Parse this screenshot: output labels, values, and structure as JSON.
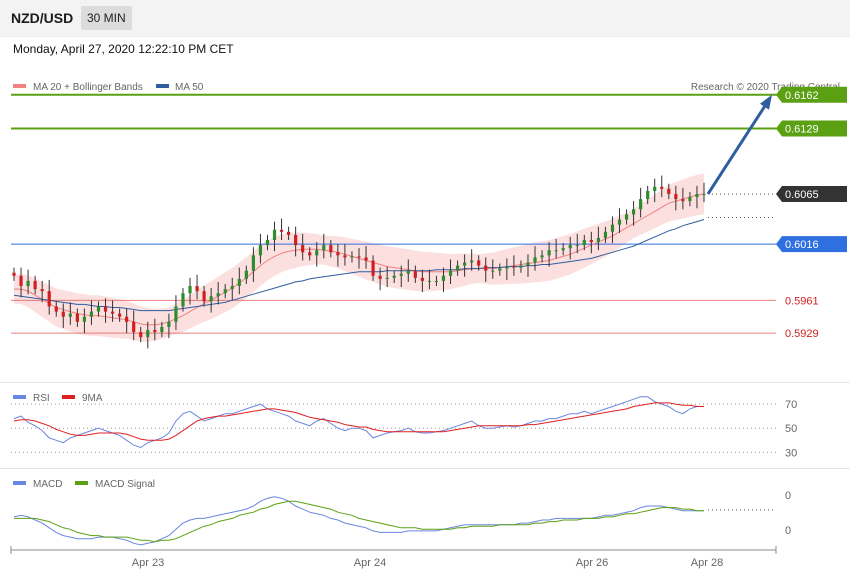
{
  "header": {
    "symbol": "NZD/USD",
    "timeframe": "30 MIN",
    "datetime": "Monday, April 27, 2020 12:22:10 PM CET"
  },
  "legend": {
    "ma20_label": "MA 20 + Bollinger Bands",
    "ma50_label": "MA 50",
    "credit": "Research © 2020 Trading Central",
    "rsi_label": "RSI",
    "rsi_ma_label": "9MA",
    "macd_label": "MACD",
    "macd_signal_label": "MACD Signal"
  },
  "colors": {
    "up": "#2e8b2e",
    "down": "#d11f1f",
    "ma20": "#f28080",
    "ma50": "#2f5d9f",
    "bands": "#fcd9d9",
    "resistance": "#5aa012",
    "pivot": "#2f6fe0",
    "support": "#e06060",
    "current": "#333333",
    "rsi": "#6b86e0",
    "rsi_ma": "#e02020",
    "macd": "#6b86e0",
    "macd_signal": "#5aa012"
  },
  "chart_data": [
    {
      "type": "candlestick",
      "pane": "price",
      "x_ticks": [
        "Apr 23",
        "Apr 24",
        "Apr 26",
        "Apr 28"
      ],
      "ylim": [
        0.5888,
        0.6196
      ],
      "current_price": "0.6065",
      "levels": [
        {
          "value": 0.6162,
          "label": "0.6162",
          "kind": "resistance"
        },
        {
          "value": 0.6129,
          "label": "0.6129",
          "kind": "resistance"
        },
        {
          "value": 0.6016,
          "label": "0.6016",
          "kind": "pivot"
        },
        {
          "value": 0.5961,
          "label": "0.5961",
          "kind": "support"
        },
        {
          "value": 0.5929,
          "label": "0.5929",
          "kind": "support"
        }
      ],
      "forecast_arrow": {
        "from": 0.6065,
        "to": 0.6162
      },
      "closes": [
        0.5985,
        0.5975,
        0.598,
        0.5972,
        0.597,
        0.5955,
        0.595,
        0.5945,
        0.5948,
        0.594,
        0.5945,
        0.595,
        0.5955,
        0.595,
        0.5948,
        0.5945,
        0.594,
        0.593,
        0.5925,
        0.5932,
        0.593,
        0.5935,
        0.594,
        0.5955,
        0.5968,
        0.5975,
        0.597,
        0.596,
        0.5965,
        0.5968,
        0.5972,
        0.5975,
        0.5982,
        0.599,
        0.6005,
        0.6015,
        0.602,
        0.603,
        0.6028,
        0.6025,
        0.6015,
        0.6008,
        0.6005,
        0.601,
        0.6015,
        0.6008,
        0.6005,
        0.6003,
        0.6004,
        0.6003,
        0.6,
        0.5985,
        0.5982,
        0.5983,
        0.5985,
        0.5987,
        0.599,
        0.5983,
        0.598,
        0.598,
        0.598,
        0.5985,
        0.599,
        0.5995,
        0.5998,
        0.6,
        0.5995,
        0.599,
        0.599,
        0.5992,
        0.5994,
        0.5993,
        0.5995,
        0.5998,
        0.6003,
        0.6005,
        0.601,
        0.601,
        0.6012,
        0.6015,
        0.6015,
        0.602,
        0.6018,
        0.6022,
        0.6028,
        0.6035,
        0.604,
        0.6045,
        0.605,
        0.606,
        0.6068,
        0.6072,
        0.607,
        0.6065,
        0.606,
        0.6058,
        0.6062,
        0.6065,
        0.6065
      ],
      "ma20": [
        0.5972,
        0.5972,
        0.597,
        0.5966,
        0.5962,
        0.5958,
        0.5954,
        0.5952,
        0.595,
        0.5948,
        0.5947,
        0.5946,
        0.5946,
        0.5945,
        0.5944,
        0.5943,
        0.5942,
        0.594,
        0.5938,
        0.5937,
        0.5937,
        0.5938,
        0.594,
        0.5943,
        0.5946,
        0.595,
        0.5954,
        0.5958,
        0.5961,
        0.5965,
        0.5969,
        0.5973,
        0.5978,
        0.5983,
        0.5989,
        0.5995,
        0.6,
        0.6004,
        0.6007,
        0.6009,
        0.601,
        0.6011,
        0.6011,
        0.6011,
        0.601,
        0.6009,
        0.6008,
        0.6006,
        0.6004,
        0.6002,
        0.6,
        0.5998,
        0.5996,
        0.5994,
        0.5993,
        0.5992,
        0.5991,
        0.599,
        0.5989,
        0.5989,
        0.5989,
        0.5989,
        0.5989,
        0.599,
        0.5991,
        0.5992,
        0.5992,
        0.5992,
        0.5992,
        0.5993,
        0.5994,
        0.5995,
        0.5996,
        0.5997,
        0.5998,
        0.5999,
        0.6,
        0.6002,
        0.6004,
        0.6006,
        0.6009,
        0.6012,
        0.6015,
        0.6018,
        0.6021,
        0.6024,
        0.6028,
        0.6032,
        0.6036,
        0.604,
        0.6044,
        0.6048,
        0.6052,
        0.6056,
        0.6058,
        0.606,
        0.6062,
        0.6064,
        0.6065
      ],
      "ma50": [
        0.5966,
        0.5965,
        0.5964,
        0.5963,
        0.5962,
        0.5961,
        0.596,
        0.5959,
        0.5958,
        0.5957,
        0.5957,
        0.5956,
        0.5955,
        0.5955,
        0.5954,
        0.5954,
        0.5953,
        0.5952,
        0.5951,
        0.5951,
        0.5951,
        0.5951,
        0.5951,
        0.5952,
        0.5953,
        0.5954,
        0.5955,
        0.5956,
        0.5957,
        0.5958,
        0.5959,
        0.5961,
        0.5963,
        0.5965,
        0.5967,
        0.5969,
        0.5971,
        0.5973,
        0.5975,
        0.5977,
        0.5979,
        0.598,
        0.5982,
        0.5983,
        0.5984,
        0.5985,
        0.5986,
        0.5987,
        0.5988,
        0.5989,
        0.5989,
        0.5989,
        0.5989,
        0.599,
        0.599,
        0.599,
        0.599,
        0.599,
        0.599,
        0.599,
        0.5991,
        0.5991,
        0.5991,
        0.5991,
        0.5992,
        0.5992,
        0.5992,
        0.5993,
        0.5993,
        0.5993,
        0.5994,
        0.5994,
        0.5994,
        0.5995,
        0.5995,
        0.5996,
        0.5996,
        0.5997,
        0.5998,
        0.5999,
        0.6,
        0.6001,
        0.6002,
        0.6004,
        0.6006,
        0.6008,
        0.601,
        0.6012,
        0.6014,
        0.6017,
        0.602,
        0.6023,
        0.6026,
        0.6029,
        0.6031,
        0.6034,
        0.6036,
        0.6038,
        0.604
      ]
    },
    {
      "type": "line",
      "pane": "rsi",
      "y_ticks": [
        "70",
        "50",
        "30"
      ],
      "ylim": [
        22,
        80
      ],
      "series": [
        {
          "name": "RSI",
          "values": [
            58,
            60,
            55,
            52,
            48,
            42,
            40,
            38,
            42,
            44,
            46,
            48,
            50,
            48,
            46,
            44,
            40,
            36,
            34,
            38,
            40,
            42,
            46,
            56,
            62,
            64,
            60,
            56,
            58,
            60,
            62,
            62,
            64,
            66,
            68,
            70,
            66,
            64,
            62,
            60,
            56,
            54,
            52,
            56,
            58,
            54,
            50,
            48,
            50,
            50,
            48,
            42,
            44,
            46,
            47,
            48,
            50,
            47,
            46,
            46,
            47,
            48,
            50,
            52,
            54,
            56,
            52,
            50,
            50,
            51,
            52,
            51,
            52,
            54,
            56,
            56,
            58,
            58,
            60,
            62,
            62,
            64,
            62,
            64,
            66,
            68,
            70,
            72,
            74,
            76,
            76,
            72,
            70,
            68,
            64,
            62,
            66,
            68,
            68
          ]
        },
        {
          "name": "9MA",
          "values": [
            56,
            57,
            57,
            56,
            54,
            52,
            49,
            47,
            45,
            44,
            44,
            45,
            46,
            46,
            46,
            46,
            45,
            43,
            41,
            40,
            40,
            40,
            41,
            44,
            48,
            52,
            56,
            58,
            59,
            60,
            60,
            61,
            62,
            63,
            64,
            65,
            66,
            66,
            65,
            64,
            63,
            61,
            59,
            58,
            57,
            56,
            55,
            53,
            52,
            51,
            51,
            49,
            48,
            47,
            47,
            47,
            47,
            47,
            47,
            47,
            47,
            47,
            48,
            49,
            50,
            51,
            52,
            52,
            52,
            52,
            52,
            52,
            52,
            53,
            53,
            54,
            55,
            56,
            57,
            58,
            59,
            60,
            61,
            62,
            63,
            64,
            65,
            66,
            68,
            69,
            70,
            71,
            71,
            71,
            70,
            69,
            69,
            68,
            68
          ]
        }
      ]
    },
    {
      "type": "line",
      "pane": "macd",
      "y_ticks": [
        "0",
        "0"
      ],
      "series": [
        {
          "name": "MACD",
          "values": [
            0.4,
            0.5,
            0.4,
            0.2,
            0.0,
            -0.3,
            -0.6,
            -0.8,
            -0.9,
            -1.0,
            -1.0,
            -1.0,
            -0.9,
            -0.9,
            -0.9,
            -1.0,
            -1.1,
            -1.3,
            -1.4,
            -1.3,
            -1.2,
            -1.0,
            -0.8,
            -0.4,
            0.0,
            0.2,
            0.3,
            0.3,
            0.4,
            0.5,
            0.6,
            0.7,
            0.8,
            0.9,
            1.1,
            1.4,
            1.6,
            1.7,
            1.6,
            1.4,
            1.1,
            0.9,
            0.7,
            0.6,
            0.5,
            0.3,
            0.2,
            0.0,
            -0.1,
            -0.2,
            -0.3,
            -0.5,
            -0.6,
            -0.6,
            -0.6,
            -0.6,
            -0.5,
            -0.5,
            -0.5,
            -0.5,
            -0.5,
            -0.4,
            -0.3,
            -0.2,
            -0.1,
            -0.1,
            -0.1,
            -0.1,
            -0.1,
            -0.1,
            -0.1,
            -0.1,
            0.0,
            0.0,
            0.1,
            0.2,
            0.2,
            0.3,
            0.3,
            0.3,
            0.3,
            0.3,
            0.3,
            0.4,
            0.5,
            0.5,
            0.6,
            0.7,
            0.8,
            1.0,
            1.1,
            1.1,
            1.1,
            1.0,
            0.9,
            0.8,
            0.8,
            0.8,
            0.8
          ]
        },
        {
          "name": "MACD Signal",
          "values": [
            0.3,
            0.3,
            0.3,
            0.3,
            0.2,
            0.1,
            -0.1,
            -0.3,
            -0.4,
            -0.6,
            -0.7,
            -0.8,
            -0.8,
            -0.9,
            -0.9,
            -0.9,
            -0.9,
            -1.0,
            -1.1,
            -1.1,
            -1.2,
            -1.1,
            -1.1,
            -1.0,
            -0.8,
            -0.6,
            -0.4,
            -0.2,
            -0.1,
            0.1,
            0.2,
            0.3,
            0.5,
            0.6,
            0.7,
            0.9,
            1.0,
            1.2,
            1.3,
            1.4,
            1.4,
            1.3,
            1.2,
            1.1,
            1.0,
            0.9,
            0.7,
            0.6,
            0.5,
            0.3,
            0.2,
            0.1,
            0.0,
            -0.1,
            -0.2,
            -0.3,
            -0.3,
            -0.3,
            -0.4,
            -0.4,
            -0.4,
            -0.4,
            -0.4,
            -0.3,
            -0.3,
            -0.2,
            -0.2,
            -0.2,
            -0.2,
            -0.1,
            -0.1,
            -0.1,
            -0.1,
            -0.1,
            0.0,
            0.0,
            0.1,
            0.1,
            0.2,
            0.2,
            0.2,
            0.3,
            0.3,
            0.3,
            0.4,
            0.4,
            0.5,
            0.6,
            0.6,
            0.7,
            0.8,
            0.9,
            1.0,
            1.0,
            1.0,
            0.9,
            0.9,
            0.8,
            0.8
          ]
        }
      ]
    }
  ]
}
